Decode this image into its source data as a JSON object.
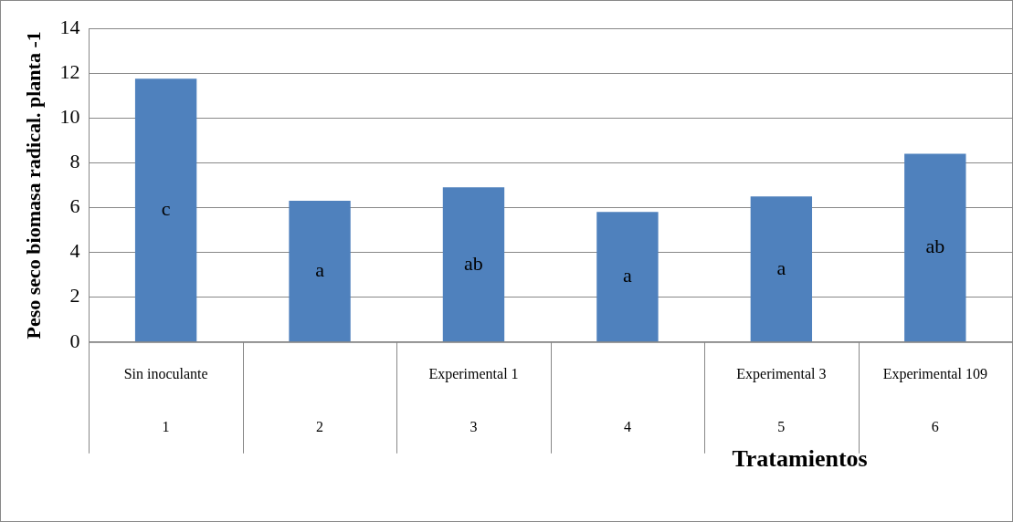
{
  "chart_data": {
    "type": "bar",
    "xlabel": "Tratamientos",
    "ylabel": "Peso seco biomasa radical. planta -1",
    "categories": [
      "Sin inoculante",
      null,
      "Experimental 1",
      null,
      "Experimental 3",
      "Experimental 109"
    ],
    "values": [
      11.75,
      6.3,
      6.9,
      5.8,
      6.5,
      8.4
    ],
    "value_labels": [
      "c",
      "a",
      "ab",
      "a",
      "a",
      "ab"
    ],
    "color": "#4f81bd",
    "ylim": [
      0,
      14
    ],
    "yticks": [
      0,
      2,
      4,
      6,
      8,
      10,
      12,
      14
    ],
    "grid": "y",
    "legend": false,
    "annotations": [
      "1",
      "2",
      "3",
      "4",
      "5",
      "6"
    ]
  }
}
